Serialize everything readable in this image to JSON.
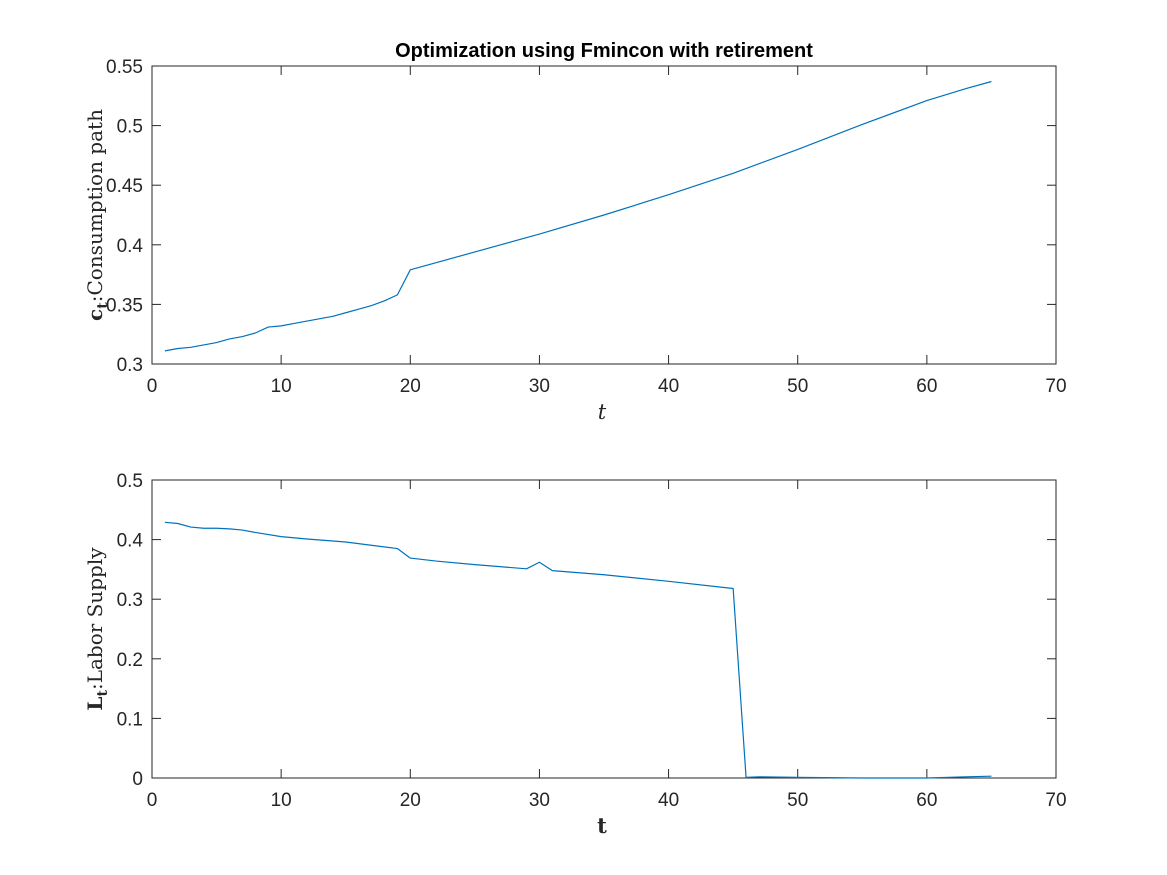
{
  "chart_data": [
    {
      "type": "line",
      "title": "Optimization using Fmincon with retirement",
      "xlabel": "t",
      "ylabel": {
        "symbol": "c",
        "subscript": "t",
        "text": ":Consumption path"
      },
      "xlim": [
        0,
        70
      ],
      "ylim": [
        0.3,
        0.55
      ],
      "xticks": [
        0,
        10,
        20,
        30,
        40,
        50,
        60,
        70
      ],
      "yticks": [
        0.3,
        0.35,
        0.4,
        0.45,
        0.5,
        0.55
      ],
      "xtick_labels": [
        "0",
        "10",
        "20",
        "30",
        "40",
        "50",
        "60",
        "70"
      ],
      "ytick_labels": [
        "0.3",
        "0.35",
        "0.4",
        "0.45",
        "0.5",
        "0.55"
      ],
      "color": "#0072bd",
      "series": [
        {
          "x": [
            1,
            2,
            3,
            4,
            5,
            6,
            7,
            8,
            9,
            10,
            11,
            12,
            13,
            14,
            15,
            16,
            17,
            18,
            19,
            20,
            25,
            30,
            35,
            40,
            45,
            50,
            55,
            60,
            63,
            65
          ],
          "values": [
            0.311,
            0.313,
            0.314,
            0.316,
            0.318,
            0.321,
            0.323,
            0.326,
            0.331,
            0.332,
            0.334,
            0.336,
            0.338,
            0.34,
            0.343,
            0.346,
            0.349,
            0.353,
            0.358,
            0.379,
            0.394,
            0.409,
            0.425,
            0.442,
            0.46,
            0.48,
            0.501,
            0.521,
            0.531,
            0.537
          ]
        }
      ]
    },
    {
      "type": "line",
      "title": "",
      "xlabel": "t",
      "ylabel": {
        "symbol": "L",
        "subscript": "t",
        "text": ":Labor Supply"
      },
      "xlim": [
        0,
        70
      ],
      "ylim": [
        0,
        0.5
      ],
      "xticks": [
        0,
        10,
        20,
        30,
        40,
        50,
        60,
        70
      ],
      "yticks": [
        0,
        0.1,
        0.2,
        0.3,
        0.4,
        0.5
      ],
      "xtick_labels": [
        "0",
        "10",
        "20",
        "30",
        "40",
        "50",
        "60",
        "70"
      ],
      "ytick_labels": [
        "0",
        "0.1",
        "0.2",
        "0.3",
        "0.4",
        "0.5"
      ],
      "color": "#0072bd",
      "series": [
        {
          "x": [
            1,
            2,
            3,
            4,
            5,
            6,
            7,
            8,
            10,
            12,
            15,
            19,
            20,
            22,
            25,
            29,
            30,
            31,
            35,
            40,
            45,
            46,
            47,
            50,
            55,
            60,
            63,
            65
          ],
          "values": [
            0.429,
            0.427,
            0.421,
            0.419,
            0.419,
            0.418,
            0.416,
            0.412,
            0.405,
            0.401,
            0.396,
            0.385,
            0.369,
            0.364,
            0.358,
            0.351,
            0.362,
            0.348,
            0.341,
            0.33,
            0.318,
            0.001,
            0.002,
            0.001,
            0.0,
            0.0,
            0.002,
            0.003
          ]
        }
      ]
    }
  ]
}
